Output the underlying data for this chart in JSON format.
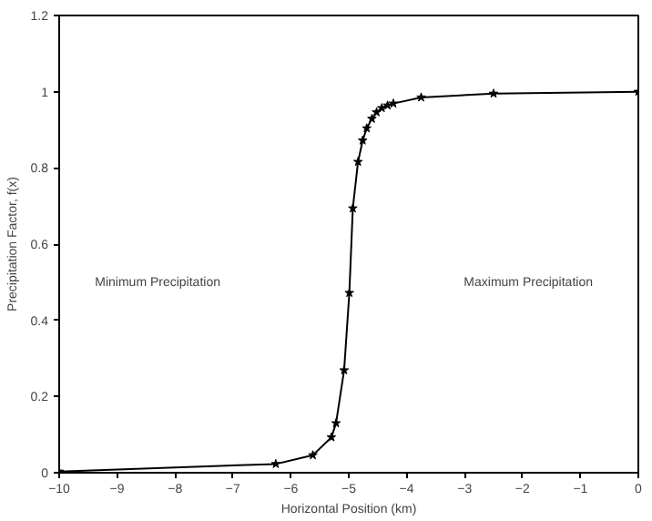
{
  "chart_data": {
    "type": "line",
    "xlabel": "Horizontal Position (km)",
    "ylabel": "Precipitation Factor, f(x)",
    "annotations": [
      "Minimum Precipitation",
      "Maximum Precipitation"
    ],
    "x": [
      -10,
      -6.26,
      -5.62,
      -5.3,
      -5.22,
      -5.08,
      -4.99,
      -4.93,
      -4.84,
      -4.76,
      -4.69,
      -4.6,
      -4.52,
      -4.43,
      -4.33,
      -4.23,
      -3.75,
      -2.5,
      0
    ],
    "series": [
      {
        "color": "#000000",
        "values": [
          0.003,
          0.023,
          0.046,
          0.093,
          0.13,
          0.269,
          0.472,
          0.694,
          0.816,
          0.872,
          0.904,
          0.929,
          0.946,
          0.957,
          0.964,
          0.969,
          0.985,
          0.995,
          1.0
        ]
      }
    ],
    "xlim": [
      -10,
      0
    ],
    "xticks": [
      -10,
      -9,
      -8,
      -7,
      -6,
      -5,
      -4,
      -3,
      -2,
      -1,
      0
    ],
    "ylim": [
      0,
      1.2
    ],
    "yticks": [
      0,
      0.2,
      0.4,
      0.6,
      0.8,
      1,
      1.2
    ],
    "marker": "star",
    "line_style": "solid",
    "grid": false
  }
}
